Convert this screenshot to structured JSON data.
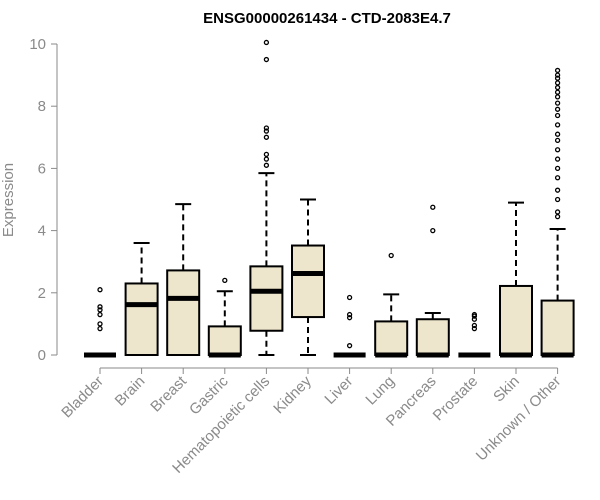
{
  "chart_data": {
    "type": "boxplot",
    "title": "ENSG00000261434 - CTD-2083E4.7",
    "ylabel": "Expression",
    "xlabel": "",
    "ylim": [
      0,
      10
    ],
    "yticks": [
      0,
      2,
      4,
      6,
      8,
      10
    ],
    "grid": false,
    "colors": {
      "box_fill": "#ede6cc",
      "box_stroke": "#000000",
      "axis": "#8a8a8a",
      "title": "#000000"
    },
    "categories": [
      "Bladder",
      "Brain",
      "Breast",
      "Gastric",
      "Hematopoietic cells",
      "Kidney",
      "Liver",
      "Lung",
      "Pancreas",
      "Prostate",
      "Skin",
      "Unknown / Other"
    ],
    "boxes": [
      {
        "q1": 0,
        "median": 0,
        "q3": 0,
        "whisker_low": 0,
        "whisker_high": 0,
        "outliers": [
          0.85,
          1.0,
          1.3,
          1.45,
          1.55,
          2.1
        ]
      },
      {
        "q1": 0,
        "median": 1.62,
        "q3": 2.3,
        "whisker_low": 0,
        "whisker_high": 3.6,
        "outliers": []
      },
      {
        "q1": 0,
        "median": 1.82,
        "q3": 2.72,
        "whisker_low": 0,
        "whisker_high": 4.85,
        "outliers": []
      },
      {
        "q1": 0,
        "median": 0,
        "q3": 0.92,
        "whisker_low": 0,
        "whisker_high": 2.05,
        "outliers": [
          2.4
        ]
      },
      {
        "q1": 0.78,
        "median": 2.05,
        "q3": 2.85,
        "whisker_low": 0,
        "whisker_high": 5.85,
        "outliers": [
          6.1,
          6.3,
          6.45,
          7.0,
          7.2,
          7.3,
          9.5,
          10.05
        ]
      },
      {
        "q1": 1.22,
        "median": 2.62,
        "q3": 3.52,
        "whisker_low": 0,
        "whisker_high": 5.0,
        "outliers": []
      },
      {
        "q1": 0,
        "median": 0,
        "q3": 0,
        "whisker_low": 0,
        "whisker_high": 0,
        "outliers": [
          0.3,
          1.2,
          1.3,
          1.85
        ]
      },
      {
        "q1": 0,
        "median": 0,
        "q3": 1.08,
        "whisker_low": 0,
        "whisker_high": 1.95,
        "outliers": [
          3.2
        ]
      },
      {
        "q1": 0,
        "median": 0,
        "q3": 1.15,
        "whisker_low": 0,
        "whisker_high": 1.35,
        "outliers": [
          4.0,
          4.75
        ]
      },
      {
        "q1": 0,
        "median": 0,
        "q3": 0,
        "whisker_low": 0,
        "whisker_high": 0,
        "outliers": [
          0.85,
          0.95,
          1.15,
          1.25,
          1.3
        ]
      },
      {
        "q1": 0,
        "median": 0,
        "q3": 2.22,
        "whisker_low": 0,
        "whisker_high": 4.9,
        "outliers": []
      },
      {
        "q1": 0,
        "median": 0,
        "q3": 1.75,
        "whisker_low": 0,
        "whisker_high": 4.05,
        "outliers": [
          4.45,
          4.6,
          5.0,
          5.3,
          5.7,
          6.0,
          6.3,
          6.6,
          6.9,
          7.1,
          7.4,
          7.7,
          7.9,
          8.1,
          8.3,
          8.45,
          8.6,
          8.75,
          8.9,
          9.0,
          9.15
        ]
      }
    ]
  }
}
